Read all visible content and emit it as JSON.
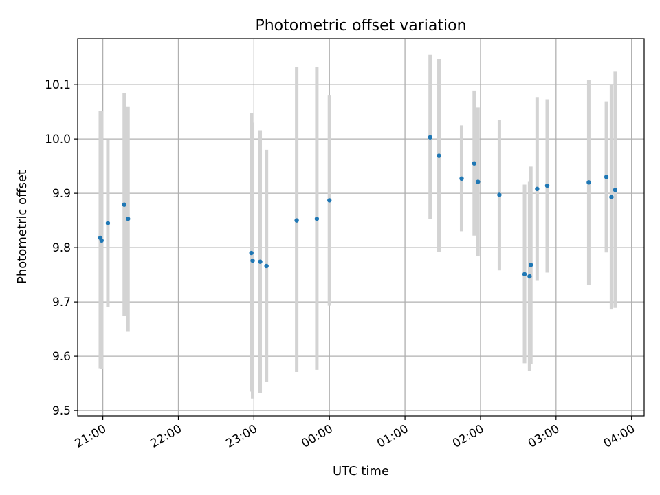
{
  "chart_data": {
    "type": "scatter",
    "title": "Photometric offset variation",
    "xlabel": "UTC time",
    "ylabel": "Photometric offset",
    "x_axis": "time",
    "x_range": [
      "20:40",
      "04:10"
    ],
    "ylim": [
      9.49,
      10.185
    ],
    "grid": true,
    "x_ticks": [
      "21:00",
      "22:00",
      "23:00",
      "00:00",
      "01:00",
      "02:00",
      "03:00",
      "04:00"
    ],
    "y_ticks": [
      9.5,
      9.6,
      9.7,
      9.8,
      9.9,
      10.0,
      10.1
    ],
    "colors": {
      "points": "#1f77b4",
      "error_bars": "#d3d3d3"
    },
    "series": [
      {
        "points": [
          {
            "x": "20:58",
            "y": 9.818,
            "err": [
              9.578,
              10.052
            ]
          },
          {
            "x": "20:59",
            "y": 9.813,
            "err": [
              9.577,
              10.051
            ]
          },
          {
            "x": "21:04",
            "y": 9.845,
            "err": [
              9.69,
              9.998
            ]
          },
          {
            "x": "21:17",
            "y": 9.879,
            "err": [
              9.674,
              10.085
            ]
          },
          {
            "x": "21:20",
            "y": 9.853,
            "err": [
              9.645,
              10.06
            ]
          },
          {
            "x": "22:58",
            "y": 9.79,
            "err": [
              9.535,
              10.047
            ]
          },
          {
            "x": "22:59",
            "y": 9.776,
            "err": [
              9.522,
              10.03
            ]
          },
          {
            "x": "23:05",
            "y": 9.774,
            "err": [
              9.533,
              10.016
            ]
          },
          {
            "x": "23:10",
            "y": 9.766,
            "err": [
              9.552,
              9.98
            ]
          },
          {
            "x": "23:34",
            "y": 9.85,
            "err": [
              9.571,
              10.132
            ]
          },
          {
            "x": "23:50",
            "y": 9.853,
            "err": [
              9.575,
              10.132
            ]
          },
          {
            "x": "00:00",
            "y": 9.887,
            "err": [
              9.693,
              10.081
            ]
          },
          {
            "x": "01:20",
            "y": 10.003,
            "err": [
              9.852,
              10.155
            ]
          },
          {
            "x": "01:27",
            "y": 9.969,
            "err": [
              9.792,
              10.147
            ]
          },
          {
            "x": "01:45",
            "y": 9.927,
            "err": [
              9.83,
              10.025
            ]
          },
          {
            "x": "01:55",
            "y": 9.955,
            "err": [
              9.822,
              10.089
            ]
          },
          {
            "x": "01:58",
            "y": 9.921,
            "err": [
              9.785,
              10.058
            ]
          },
          {
            "x": "02:15",
            "y": 9.897,
            "err": [
              9.758,
              10.035
            ]
          },
          {
            "x": "02:35",
            "y": 9.751,
            "err": [
              9.587,
              9.916
            ]
          },
          {
            "x": "02:39",
            "y": 9.747,
            "err": [
              9.573,
              9.921
            ]
          },
          {
            "x": "02:40",
            "y": 9.768,
            "err": [
              9.586,
              9.949
            ]
          },
          {
            "x": "02:45",
            "y": 9.908,
            "err": [
              9.74,
              10.077
            ]
          },
          {
            "x": "02:53",
            "y": 9.914,
            "err": [
              9.754,
              10.073
            ]
          },
          {
            "x": "03:26",
            "y": 9.92,
            "err": [
              9.731,
              10.109
            ]
          },
          {
            "x": "03:40",
            "y": 9.93,
            "err": [
              9.791,
              10.069
            ]
          },
          {
            "x": "03:44",
            "y": 9.893,
            "err": [
              9.686,
              10.1
            ]
          },
          {
            "x": "03:47",
            "y": 9.906,
            "err": [
              9.689,
              10.125
            ]
          }
        ]
      }
    ]
  }
}
